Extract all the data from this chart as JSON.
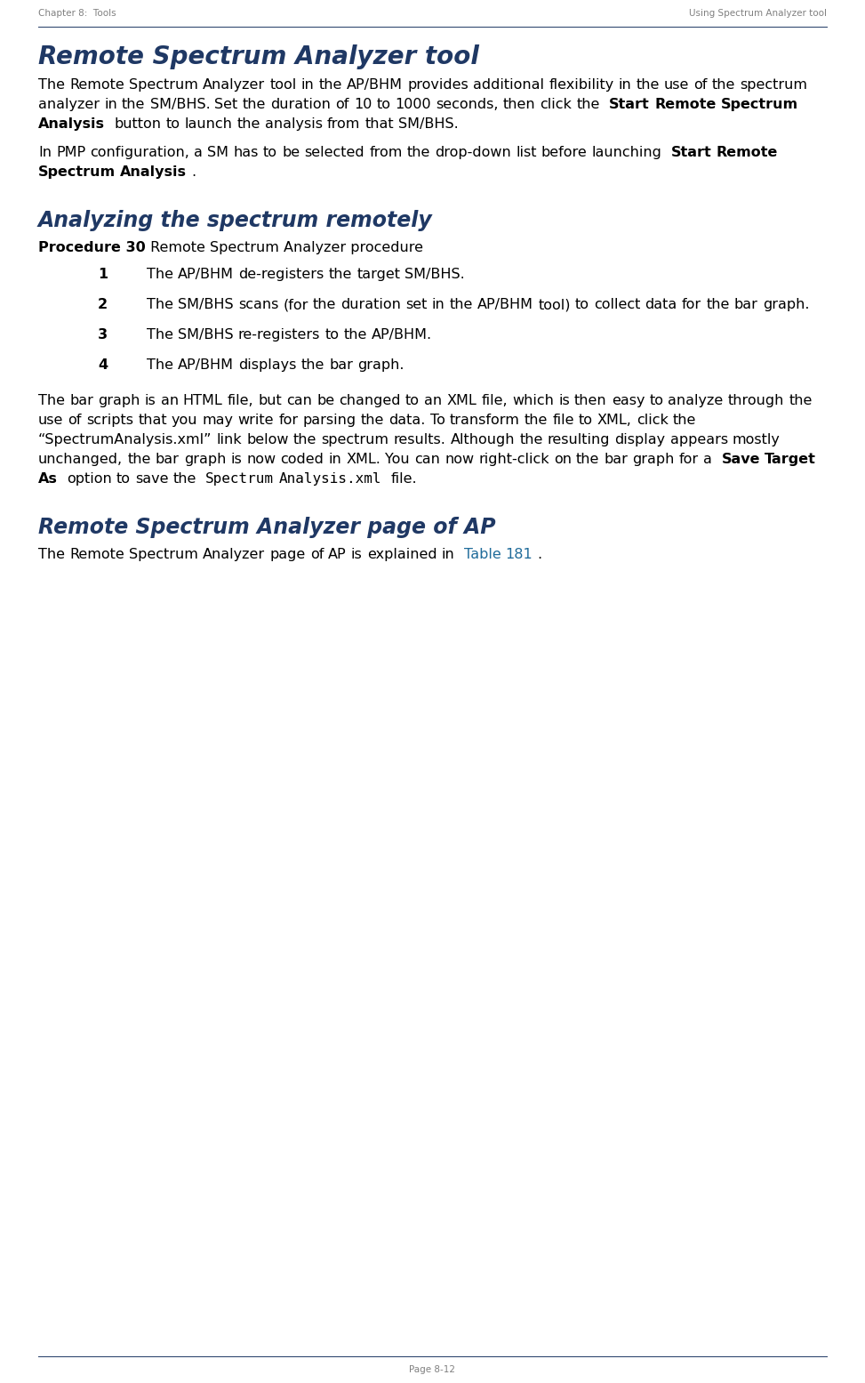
{
  "header_left": "Chapter 8:  Tools",
  "header_right": "Using Spectrum Analyzer tool",
  "footer": "Page 8-12",
  "header_color": "#808080",
  "title1": "Remote Spectrum Analyzer tool",
  "title1_color": "#1F3864",
  "title2": "Analyzing the spectrum remotely",
  "title2_color": "#1F3864",
  "title3": "Remote Spectrum Analyzer page of AP",
  "title3_color": "#1F3864",
  "procedure_label": "Procedure 30",
  "procedure_text": "Remote Spectrum Analyzer procedure",
  "steps": [
    {
      "num": "1",
      "text": "The AP/BHM de-registers the target SM/BHS."
    },
    {
      "num": "2",
      "text": "The SM/BHS scans (for the duration set in the AP/BHM tool) to collect data for the bar graph."
    },
    {
      "num": "3",
      "text": "The SM/BHS re-registers to the AP/BHM."
    },
    {
      "num": "4",
      "text": "The AP/BHM displays the bar graph."
    }
  ],
  "para4_link": "Table 181",
  "para4_link_color": "#1F6B9A",
  "bg_color": "#ffffff",
  "text_color": "#000000",
  "line_color": "#1F3864"
}
